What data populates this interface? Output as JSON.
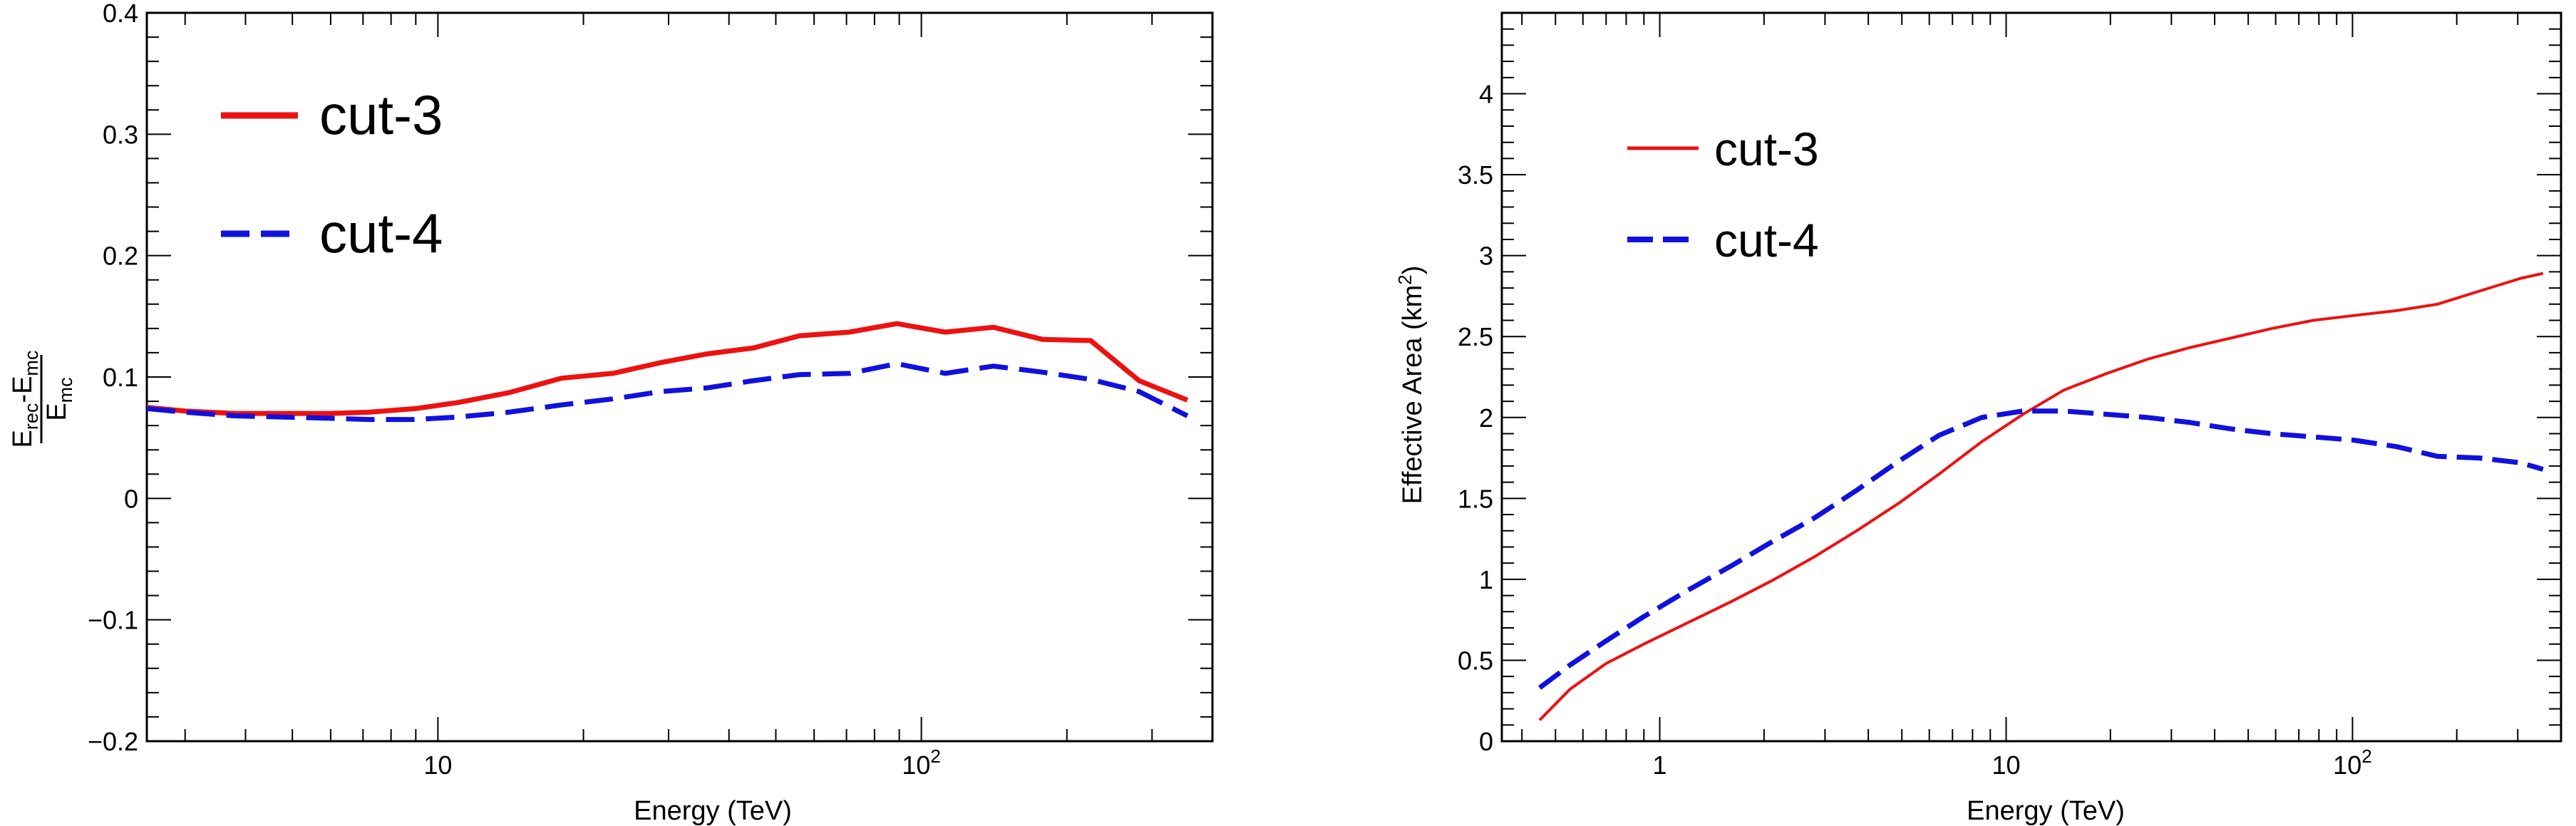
{
  "chart_data": [
    {
      "type": "line",
      "xlabel": "Energy (TeV)",
      "ylabel": {
        "num_main": "E",
        "num_sub1": "rec",
        "num_mid": "-E",
        "num_sub2": "mc",
        "den_main": "E",
        "den_sub": "mc"
      },
      "xscale": "log",
      "xlim": [
        2.5,
        400
      ],
      "ylim": [
        -0.2,
        0.4
      ],
      "y_ticks": [
        "0.4",
        "0.3",
        "0.2",
        "0.1",
        "0",
        "−0.1",
        "−0.2"
      ],
      "x_ticks": [
        {
          "base": "10",
          "exp": ""
        },
        {
          "base": "10",
          "exp": "2"
        }
      ],
      "legend": {
        "position": "top-left"
      },
      "series": [
        {
          "name": "cut-3",
          "color": "#ee1111",
          "style": "solid",
          "x": [
            2.5,
            3.0,
            3.8,
            4.8,
            6.0,
            7.2,
            9.0,
            11.0,
            14.0,
            18.0,
            23.0,
            29.0,
            36.0,
            45.0,
            56.0,
            71.0,
            89.0,
            112.0,
            141.0,
            178.0,
            224.0,
            282.0,
            355.0
          ],
          "y": [
            0.075,
            0.072,
            0.07,
            0.07,
            0.07,
            0.071,
            0.074,
            0.079,
            0.087,
            0.099,
            0.103,
            0.112,
            0.119,
            0.124,
            0.134,
            0.137,
            0.144,
            0.137,
            0.141,
            0.131,
            0.13,
            0.097,
            0.081
          ]
        },
        {
          "name": "cut-4",
          "color": "#1111dd",
          "style": "dashed",
          "x": [
            2.5,
            3.0,
            3.8,
            4.8,
            6.0,
            7.2,
            9.0,
            11.0,
            14.0,
            18.0,
            23.0,
            29.0,
            36.0,
            45.0,
            56.0,
            71.0,
            89.0,
            112.0,
            141.0,
            178.0,
            224.0,
            282.0,
            355.0
          ],
          "y": [
            0.074,
            0.071,
            0.068,
            0.067,
            0.066,
            0.065,
            0.065,
            0.067,
            0.071,
            0.077,
            0.082,
            0.088,
            0.091,
            0.097,
            0.102,
            0.103,
            0.111,
            0.103,
            0.109,
            0.104,
            0.098,
            0.088,
            0.068
          ]
        }
      ]
    },
    {
      "type": "line",
      "xlabel": "Energy (TeV)",
      "ylabel": {
        "main": "Effective Area (km",
        "sup": "2",
        "tail": ")"
      },
      "xscale": "log",
      "xlim": [
        0.35,
        400
      ],
      "ylim": [
        0,
        4.5
      ],
      "y_ticks": [
        "4",
        "3.5",
        "3",
        "2.5",
        "2",
        "1.5",
        "1",
        "0.5",
        "0"
      ],
      "x_ticks": [
        {
          "base": "1",
          "exp": ""
        },
        {
          "base": "10",
          "exp": ""
        },
        {
          "base": "10",
          "exp": "2"
        }
      ],
      "legend": {
        "position": "top-left"
      },
      "series": [
        {
          "name": "cut-3",
          "color": "#ee1111",
          "style": "solid",
          "x": [
            0.45,
            0.55,
            0.7,
            0.9,
            1.2,
            1.6,
            2.1,
            2.8,
            3.7,
            4.9,
            6.4,
            8.5,
            11.2,
            14.7,
            19.4,
            25.6,
            33.7,
            44.4,
            58.5,
            77.0,
            101.0,
            134.0,
            176.0,
            232.0,
            306.0,
            355.0
          ],
          "y": [
            0.13,
            0.32,
            0.48,
            0.6,
            0.73,
            0.86,
            0.99,
            1.14,
            1.3,
            1.47,
            1.65,
            1.85,
            2.02,
            2.17,
            2.27,
            2.36,
            2.43,
            2.49,
            2.55,
            2.6,
            2.63,
            2.66,
            2.7,
            2.78,
            2.86,
            2.89
          ]
        },
        {
          "name": "cut-4",
          "color": "#1111dd",
          "style": "dashed",
          "x": [
            0.45,
            0.55,
            0.7,
            0.9,
            1.2,
            1.6,
            2.1,
            2.8,
            3.7,
            4.9,
            6.4,
            8.5,
            11.2,
            14.7,
            19.4,
            25.6,
            33.7,
            44.4,
            58.5,
            77.0,
            101.0,
            134.0,
            176.0,
            232.0,
            306.0,
            355.0
          ],
          "y": [
            0.33,
            0.47,
            0.62,
            0.77,
            0.93,
            1.08,
            1.23,
            1.38,
            1.55,
            1.73,
            1.89,
            2.0,
            2.04,
            2.04,
            2.02,
            2.0,
            1.97,
            1.93,
            1.9,
            1.88,
            1.86,
            1.82,
            1.76,
            1.75,
            1.72,
            1.68
          ]
        }
      ]
    }
  ]
}
